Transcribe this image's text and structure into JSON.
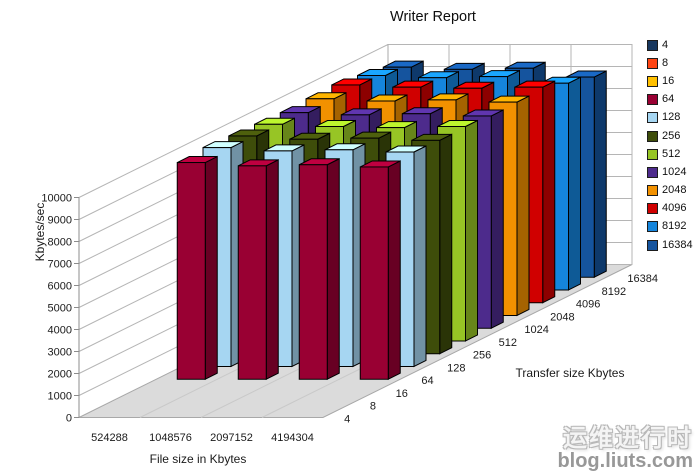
{
  "page": {
    "watermark_line1": "运维进行时",
    "watermark_line2": "blog.liuts.com"
  },
  "chart_data": {
    "type": "bar",
    "projection": "3d",
    "title": "Writer Report",
    "xlabel": "File size in Kbytes",
    "ylabel": "Kbytes/sec",
    "zlabel": "Transfer size Kbytes",
    "categories": [
      "524288",
      "1048576",
      "2097152",
      "4194304"
    ],
    "z_categories": [
      "4",
      "8",
      "16",
      "64",
      "128",
      "256",
      "512",
      "1024",
      "2048",
      "4096",
      "8192",
      "16384"
    ],
    "ylim": [
      0,
      10000
    ],
    "ytick_step": 1000,
    "grid": true,
    "legend_position": "right",
    "series": [
      {
        "name": "4",
        "color": "#17375E",
        "values": [
          null,
          null,
          null,
          null
        ]
      },
      {
        "name": "8",
        "color": "#FF4513",
        "values": [
          null,
          null,
          null,
          null
        ]
      },
      {
        "name": "16",
        "color": "#FFC000",
        "values": [
          null,
          null,
          null,
          null
        ]
      },
      {
        "name": "64",
        "color": "#990033",
        "values": [
          9850,
          9700,
          9750,
          9650
        ]
      },
      {
        "name": "128",
        "color": "#A6D6F2",
        "values": [
          9950,
          9800,
          9850,
          9750
        ]
      },
      {
        "name": "256",
        "color": "#3E4D0A",
        "values": [
          9900,
          9750,
          9800,
          9700
        ]
      },
      {
        "name": "512",
        "color": "#97C525",
        "values": [
          9850,
          9750,
          9700,
          9750
        ]
      },
      {
        "name": "1024",
        "color": "#4D2B8C",
        "values": [
          9800,
          9700,
          9750,
          9650
        ]
      },
      {
        "name": "2048",
        "color": "#F29100",
        "values": [
          9850,
          9750,
          9800,
          9700
        ]
      },
      {
        "name": "4096",
        "color": "#D00000",
        "values": [
          9900,
          9800,
          9750,
          9800
        ]
      },
      {
        "name": "8192",
        "color": "#1585DC",
        "values": [
          9750,
          9650,
          9700,
          9400
        ]
      },
      {
        "name": "16384",
        "color": "#15549E",
        "values": [
          9550,
          9450,
          9500,
          9100
        ]
      }
    ]
  }
}
